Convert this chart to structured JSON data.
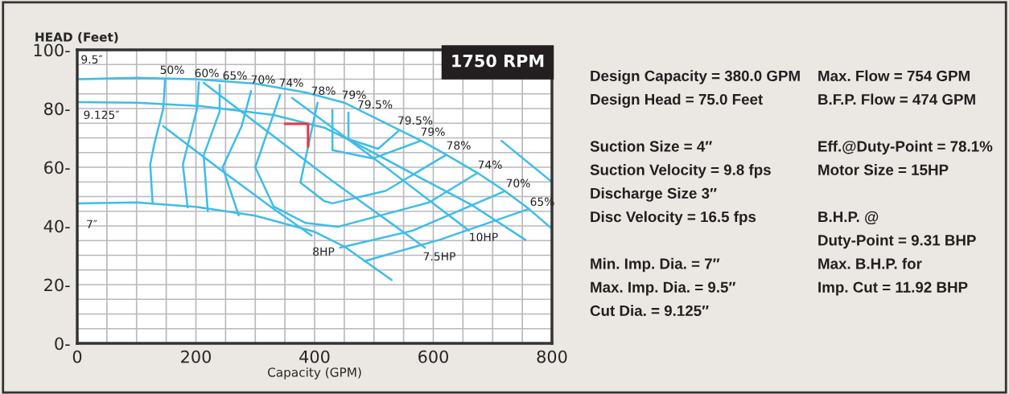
{
  "chart_data": [
    {
      "type": "line",
      "xlabel": "Capacity (GPM)",
      "ylabel": "HEAD (Feet)",
      "xlim": [
        0,
        800
      ],
      "ylim": [
        0,
        100
      ],
      "xticks": [
        0,
        {
          "value": 50,
          "label": null
        },
        {
          "value": 100,
          "label": null
        },
        {
          "value": 150,
          "label": null
        },
        200,
        {
          "value": 250,
          "label": null
        },
        {
          "value": 300,
          "label": null
        },
        {
          "value": 350,
          "label": null
        },
        400,
        {
          "value": 450,
          "label": null
        },
        {
          "value": 500,
          "label": null
        },
        {
          "value": 550,
          "label": null
        },
        600,
        {
          "value": 650,
          "label": null
        },
        {
          "value": 700,
          "label": null
        },
        {
          "value": 750,
          "label": null
        },
        800
      ],
      "yticks": [
        {
          "value": 0,
          "label": "0-"
        },
        {
          "value": 5,
          "label": null
        },
        {
          "value": 10,
          "label": null
        },
        {
          "value": 15,
          "label": null
        },
        {
          "value": 20,
          "label": "20-"
        },
        {
          "value": 25,
          "label": null
        },
        {
          "value": 30,
          "label": null
        },
        {
          "value": 35,
          "label": null
        },
        {
          "value": 40,
          "label": "40-"
        },
        {
          "value": 45,
          "label": null
        },
        {
          "value": 50,
          "label": null
        },
        {
          "value": 55,
          "label": null
        },
        {
          "value": 60,
          "label": "60-"
        },
        {
          "value": 65,
          "label": null
        },
        {
          "value": 70,
          "label": null
        },
        {
          "value": 75,
          "label": null
        },
        {
          "value": 80,
          "label": "80-"
        },
        {
          "value": 85,
          "label": null
        },
        {
          "value": 90,
          "label": null
        },
        {
          "value": 95,
          "label": null
        },
        {
          "value": 100,
          "label": "100-"
        }
      ],
      "grid": true,
      "legend": false,
      "marker": "none",
      "line_style": "solid",
      "series": [
        {
          "color": "#3dbde9",
          "x": [
            0,
            100,
            200,
            300,
            385,
            450,
            540,
            580,
            620,
            675,
            720,
            760,
            800
          ],
          "values": [
            90,
            90.5,
            90,
            88.5,
            85.5,
            82,
            73,
            69,
            64.5,
            58,
            52,
            46,
            39
          ]
        },
        {
          "color": "#3dbde9",
          "x": [
            0,
            100,
            209,
            331,
            416,
            466,
            582,
            666,
            755
          ],
          "values": [
            82.2,
            82,
            80.8,
            77.8,
            73.5,
            68.5,
            56,
            47,
            35.3
          ]
        },
        {
          "color": "#3dbde9",
          "x": [
            0,
            100,
            200,
            300,
            400,
            450,
            530
          ],
          "values": [
            47.7,
            48,
            46.5,
            43.5,
            38,
            33,
            21.6
          ]
        },
        {
          "color": "#3dbde9",
          "x": [
            148,
            145,
            130,
            123,
            127
          ],
          "values": [
            90,
            80,
            68,
            61,
            47.7
          ]
        },
        {
          "color": "#3dbde9",
          "x": [
            205,
            202,
            178,
            186
          ],
          "values": [
            89,
            80,
            61,
            46.3
          ]
        },
        {
          "color": "#3dbde9",
          "x": [
            240,
            240,
            213,
            220
          ],
          "values": [
            88,
            79,
            64,
            45
          ]
        },
        {
          "color": "#3dbde9",
          "x": [
            293,
            277,
            245,
            272
          ],
          "values": [
            86,
            74,
            60,
            43.6
          ]
        },
        {
          "color": "#3dbde9",
          "x": [
            342,
            300,
            331,
            385,
            439,
            593,
            674
          ],
          "values": [
            84.7,
            60,
            46.6,
            41,
            39.7,
            48,
            58
          ]
        },
        {
          "color": "#3dbde9",
          "x": [
            405,
            376,
            416,
            430,
            520,
            620
          ],
          "values": [
            82,
            54.8,
            48.5,
            47.7,
            52,
            64
          ]
        },
        {
          "color": "#3dbde9",
          "x": [
            430,
            430,
            498,
            579
          ],
          "values": [
            79.5,
            65.8,
            63,
            69
          ]
        },
        {
          "color": "#3dbde9",
          "x": [
            457,
            457,
            507,
            541
          ],
          "values": [
            78.6,
            69.6,
            66.3,
            72.3
          ]
        },
        {
          "color": "#3dbde9",
          "x": [
            145,
            245,
            331,
            395
          ],
          "values": [
            74,
            58.6,
            45.8,
            36.7
          ]
        },
        {
          "color": "#3dbde9",
          "x": [
            213,
            426,
            586
          ],
          "values": [
            88.8,
            55.9,
            32.6
          ]
        },
        {
          "color": "#3dbde9",
          "x": [
            362,
            440,
            520,
            660
          ],
          "values": [
            83.6,
            72,
            60,
            38.4
          ]
        },
        {
          "color": "#3dbde9",
          "x": [
            715,
            800
          ],
          "values": [
            69,
            55
          ]
        },
        {
          "color": "#3dbde9",
          "x": [
            443,
            565,
            720
          ],
          "values": [
            32.6,
            38.4,
            51.8
          ]
        },
        {
          "color": "#3dbde9",
          "x": [
            484,
            611,
            761
          ],
          "values": [
            28,
            35.3,
            45.8
          ]
        },
        {
          "color": "#ee3340",
          "x": [
            350,
            389,
            389
          ],
          "values": [
            74.8,
            74.8,
            67
          ]
        }
      ],
      "annotations": [
        "1750 RPM",
        "9.5″",
        "9.125″",
        "7″",
        "50%",
        "60%",
        "65%",
        "70%",
        "74%",
        "78%",
        "79%",
        "79.5%",
        "79.5%",
        "79%",
        "78%",
        "74%",
        "70%",
        "65%",
        "8HP",
        "7.5HP",
        "10HP"
      ]
    },
    {
      "type": "other",
      "annotations": [
        "Design Capacity = 380.0 GPM",
        "Design Head = 75.0 Feet",
        "Suction Size = 4″",
        "Suction Velocity = 9.8 fps",
        "Discharge Size 3″",
        "Disc Velocity = 16.5 fps",
        "Min. Imp. Dia. = 7″",
        "Max. Imp. Dia. = 9.5″",
        "Cut Dia. = 9.125″",
        "Max. Flow = 754 GPM",
        "B.F.P. Flow = 474 GPM",
        "Eff.@Duty-Point = 78.1%",
        "Motor Size = 15HP",
        "B.H.P. @",
        "Duty-Point = 9.31 BHP",
        "Max. B.H.P. for",
        "Imp. Cut = 11.92 BHP"
      ]
    }
  ]
}
